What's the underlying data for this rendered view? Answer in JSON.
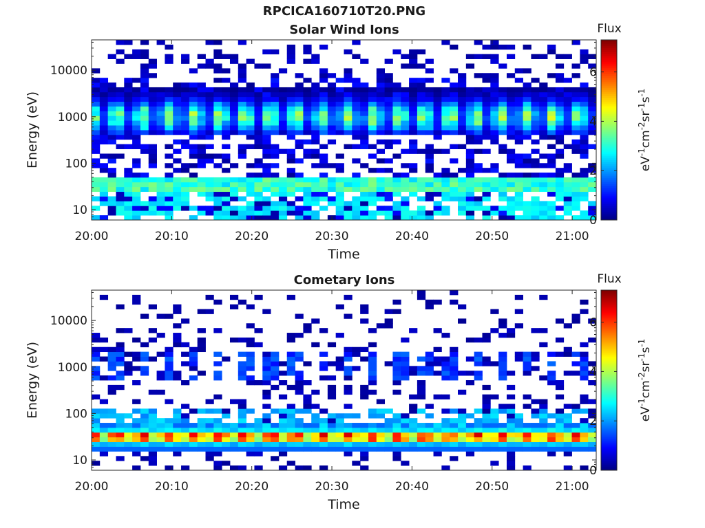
{
  "title": "RPCICA160710T20.PNG",
  "colorbar": {
    "title": "Flux",
    "label_parts": [
      "eV",
      "-1",
      "cm",
      "-2",
      "sr",
      "-1",
      "s",
      "-1"
    ],
    "range": [
      0,
      7.3
    ],
    "ticks": [
      0,
      2,
      4,
      6
    ],
    "colormap": "jet",
    "colors": [
      "#00007f",
      "#0000ff",
      "#007fff",
      "#00ffff",
      "#7fff7f",
      "#ffff00",
      "#ff7f00",
      "#ff0000",
      "#7f0000"
    ]
  },
  "chart_data": [
    {
      "type": "heatmap",
      "title": "Solar Wind Ions",
      "xlabel": "Time",
      "ylabel": "Energy (eV)",
      "xlim": [
        "20:00",
        "21:03"
      ],
      "xticks": [
        "20:00",
        "20:10",
        "20:20",
        "20:30",
        "20:40",
        "20:50",
        "21:00"
      ],
      "yscale": "log",
      "ylim": [
        6,
        45000
      ],
      "yticks": [
        10,
        100,
        1000,
        10000
      ],
      "ytick_labels": [
        "10",
        "100",
        "1000",
        "10000"
      ],
      "time_bins": 62,
      "energy_bins": 38,
      "features": [
        {
          "name": "solar wind peak",
          "energy_center_eV": 1000,
          "peak_flux": 4.3,
          "pulse_period_min": 3.2
        },
        {
          "name": "low energy band",
          "energy_range_eV": [
            25,
            40
          ],
          "peak_flux": 3.5
        },
        {
          "name": "background",
          "energy_range_eV": [
            6,
            45000
          ],
          "peak_flux": 1.0
        }
      ]
    },
    {
      "type": "heatmap",
      "title": "Cometary Ions",
      "xlabel": "Time",
      "ylabel": "Energy (eV)",
      "xlim": [
        "20:00",
        "21:03"
      ],
      "xticks": [
        "20:00",
        "20:10",
        "20:20",
        "20:30",
        "20:40",
        "20:50",
        "21:00"
      ],
      "yscale": "log",
      "ylim": [
        6,
        45000
      ],
      "yticks": [
        10,
        100,
        1000,
        10000
      ],
      "ytick_labels": [
        "10",
        "100",
        "1000",
        "10000"
      ],
      "time_bins": 62,
      "energy_bins": 38,
      "features": [
        {
          "name": "cometary ion band",
          "energy_range_eV": [
            25,
            40
          ],
          "peak_flux": 5.7,
          "pulse_period_min": 3.2
        },
        {
          "name": "mid energy patches",
          "energy_center_eV": 1000,
          "peak_flux": 1.4
        },
        {
          "name": "background",
          "energy_range_eV": [
            6,
            45000
          ],
          "peak_flux": 0.8
        }
      ]
    }
  ]
}
